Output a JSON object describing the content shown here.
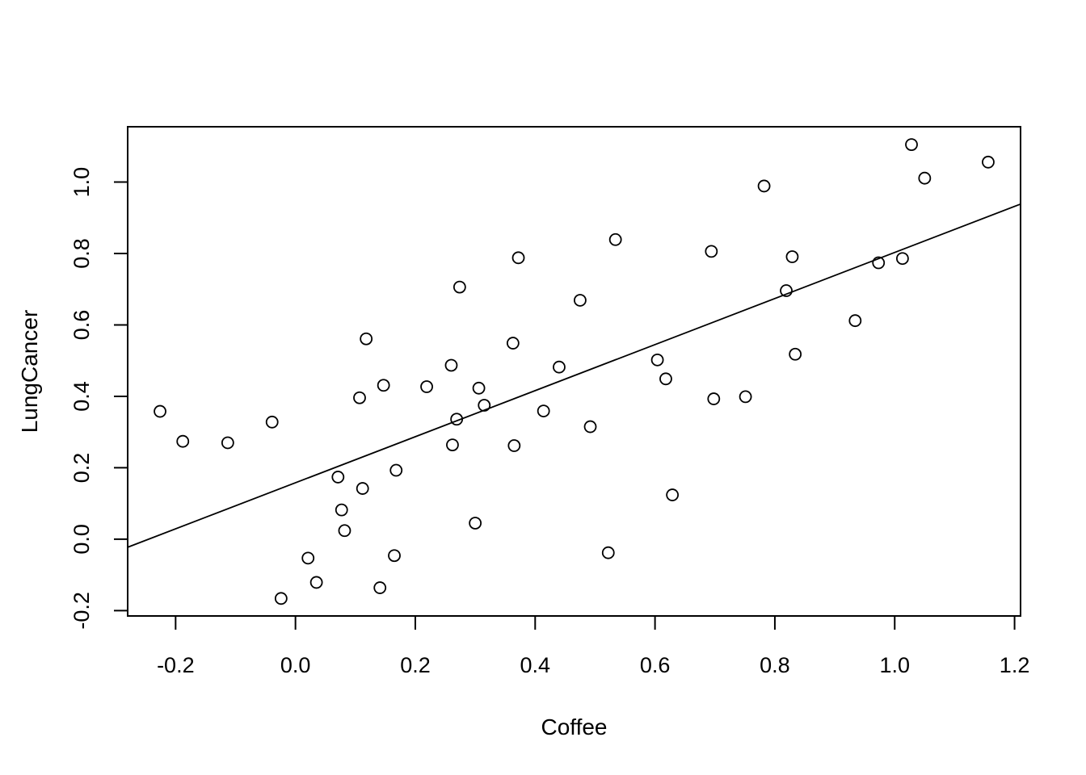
{
  "chart_data": {
    "type": "scatter",
    "title": "",
    "xlabel": "Coffee",
    "ylabel": "LungCancer",
    "xlim": [
      -0.28,
      1.21
    ],
    "ylim": [
      -0.215,
      1.155
    ],
    "xticks": [
      -0.2,
      0.0,
      0.2,
      0.4,
      0.6,
      0.8,
      1.0,
      1.2
    ],
    "xtick_labels": [
      "-0.2",
      "0.0",
      "0.2",
      "0.4",
      "0.6",
      "0.8",
      "1.0",
      "1.2"
    ],
    "yticks": [
      -0.2,
      0.0,
      0.2,
      0.4,
      0.6,
      0.8,
      1.0
    ],
    "ytick_labels": [
      "-0.2",
      "0.0",
      "0.2",
      "0.4",
      "0.6",
      "0.8",
      "1.0"
    ],
    "grid": false,
    "marker": "open-circle",
    "points": [
      {
        "x": -0.226,
        "y": 0.358
      },
      {
        "x": -0.188,
        "y": 0.274
      },
      {
        "x": -0.113,
        "y": 0.27
      },
      {
        "x": -0.039,
        "y": 0.328
      },
      {
        "x": -0.024,
        "y": -0.166
      },
      {
        "x": 0.021,
        "y": -0.053
      },
      {
        "x": 0.035,
        "y": -0.121
      },
      {
        "x": 0.071,
        "y": 0.174
      },
      {
        "x": 0.077,
        "y": 0.082
      },
      {
        "x": 0.082,
        "y": 0.024
      },
      {
        "x": 0.107,
        "y": 0.396
      },
      {
        "x": 0.112,
        "y": 0.142
      },
      {
        "x": 0.118,
        "y": 0.561
      },
      {
        "x": 0.141,
        "y": -0.136
      },
      {
        "x": 0.147,
        "y": 0.431
      },
      {
        "x": 0.165,
        "y": -0.046
      },
      {
        "x": 0.168,
        "y": 0.193
      },
      {
        "x": 0.219,
        "y": 0.427
      },
      {
        "x": 0.26,
        "y": 0.487
      },
      {
        "x": 0.262,
        "y": 0.264
      },
      {
        "x": 0.269,
        "y": 0.336
      },
      {
        "x": 0.274,
        "y": 0.706
      },
      {
        "x": 0.3,
        "y": 0.045
      },
      {
        "x": 0.306,
        "y": 0.423
      },
      {
        "x": 0.315,
        "y": 0.375
      },
      {
        "x": 0.363,
        "y": 0.549
      },
      {
        "x": 0.365,
        "y": 0.262
      },
      {
        "x": 0.372,
        "y": 0.788
      },
      {
        "x": 0.414,
        "y": 0.359
      },
      {
        "x": 0.44,
        "y": 0.482
      },
      {
        "x": 0.475,
        "y": 0.669
      },
      {
        "x": 0.492,
        "y": 0.315
      },
      {
        "x": 0.522,
        "y": -0.038
      },
      {
        "x": 0.534,
        "y": 0.839
      },
      {
        "x": 0.604,
        "y": 0.502
      },
      {
        "x": 0.618,
        "y": 0.449
      },
      {
        "x": 0.629,
        "y": 0.124
      },
      {
        "x": 0.694,
        "y": 0.806
      },
      {
        "x": 0.698,
        "y": 0.393
      },
      {
        "x": 0.751,
        "y": 0.399
      },
      {
        "x": 0.782,
        "y": 0.989
      },
      {
        "x": 0.819,
        "y": 0.696
      },
      {
        "x": 0.829,
        "y": 0.791
      },
      {
        "x": 0.834,
        "y": 0.518
      },
      {
        "x": 0.934,
        "y": 0.612
      },
      {
        "x": 0.973,
        "y": 0.774
      },
      {
        "x": 1.013,
        "y": 0.786
      },
      {
        "x": 1.028,
        "y": 1.105
      },
      {
        "x": 1.05,
        "y": 1.011
      },
      {
        "x": 1.156,
        "y": 1.056
      }
    ],
    "fit_line": {
      "intercept": 0.158,
      "slope": 0.645
    }
  }
}
